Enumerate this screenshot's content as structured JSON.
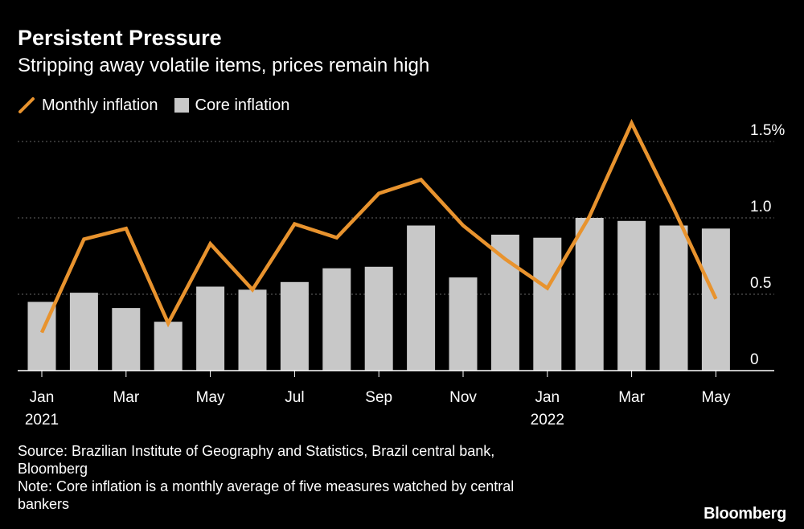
{
  "header": {
    "title": "Persistent Pressure",
    "subtitle": "Stripping away volatile items, prices remain high"
  },
  "legend": {
    "line_label": "Monthly inflation",
    "bar_label": "Core inflation"
  },
  "colors": {
    "line": "#e8932e",
    "bar": "#c8c8c8",
    "grid": "#666666",
    "background": "#000000",
    "text": "#ffffff"
  },
  "chart_data": {
    "type": "bar+line",
    "title": "Persistent Pressure",
    "subtitle": "Stripping away volatile items, prices remain high",
    "categories": [
      "Jan 2021",
      "Feb 2021",
      "Mar 2021",
      "Apr 2021",
      "May 2021",
      "Jun 2021",
      "Jul 2021",
      "Aug 2021",
      "Sep 2021",
      "Oct 2021",
      "Nov 2021",
      "Dec 2021",
      "Jan 2022",
      "Feb 2022",
      "Mar 2022",
      "Apr 2022",
      "May 2022"
    ],
    "series": [
      {
        "name": "Core inflation",
        "kind": "bar",
        "values": [
          0.45,
          0.51,
          0.41,
          0.32,
          0.55,
          0.53,
          0.58,
          0.67,
          0.68,
          0.95,
          0.61,
          0.89,
          0.87,
          1.0,
          0.98,
          0.95,
          0.93
        ]
      },
      {
        "name": "Monthly inflation",
        "kind": "line",
        "values": [
          0.25,
          0.86,
          0.93,
          0.31,
          0.83,
          0.53,
          0.96,
          0.87,
          1.16,
          1.25,
          0.95,
          0.73,
          0.54,
          1.01,
          1.62,
          1.06,
          0.47
        ]
      }
    ],
    "x_tick_labels": [
      {
        "index": 0,
        "month": "Jan",
        "year": "2021"
      },
      {
        "index": 2,
        "month": "Mar",
        "year": ""
      },
      {
        "index": 4,
        "month": "May",
        "year": ""
      },
      {
        "index": 6,
        "month": "Jul",
        "year": ""
      },
      {
        "index": 8,
        "month": "Sep",
        "year": ""
      },
      {
        "index": 10,
        "month": "Nov",
        "year": ""
      },
      {
        "index": 12,
        "month": "Jan",
        "year": "2022"
      },
      {
        "index": 14,
        "month": "Mar",
        "year": ""
      },
      {
        "index": 16,
        "month": "May",
        "year": ""
      }
    ],
    "y_ticks": [
      {
        "value": 0,
        "label": "0"
      },
      {
        "value": 0.5,
        "label": "0.5"
      },
      {
        "value": 1.0,
        "label": "1.0"
      },
      {
        "value": 1.5,
        "label": "1.5%"
      }
    ],
    "ylim": [
      0,
      1.6
    ],
    "grid": true,
    "legend_position": "top-left"
  },
  "footer": {
    "source": "Source: Brazilian Institute of Geography and Statistics, Brazil central bank,",
    "source_cont": "Bloomberg",
    "note": "Note: Core inflation is a monthly average of five measures watched by central",
    "note_cont": "bankers"
  },
  "brand": "Bloomberg"
}
